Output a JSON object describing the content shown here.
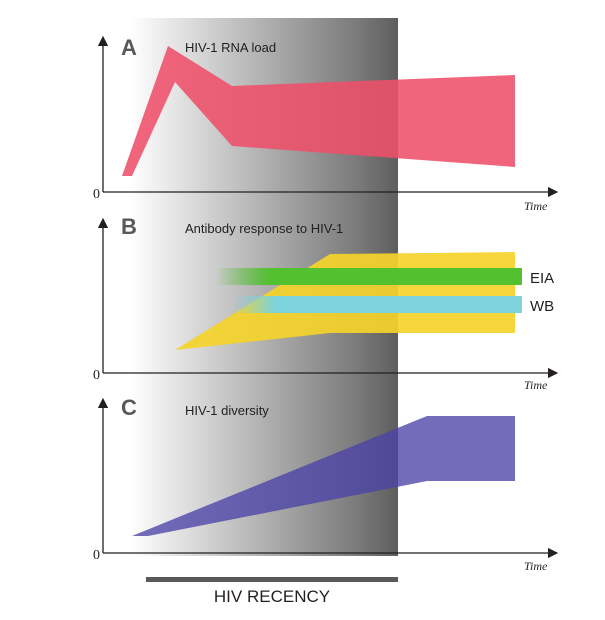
{
  "panels": [
    {
      "letter": "A",
      "title": "HIV-1 RNA load",
      "zero": "0",
      "xlabel": "Time"
    },
    {
      "letter": "B",
      "title": "Antibody response to HIV-1",
      "zero": "0",
      "xlabel": "Time"
    },
    {
      "letter": "C",
      "title": "HIV-1 diversity",
      "zero": "0",
      "xlabel": "Time"
    }
  ],
  "assays": [
    {
      "label": "EIA",
      "color": "#52c02f"
    },
    {
      "label": "WB",
      "color": "#7dd3dc"
    }
  ],
  "recency": {
    "label": "HIV RECENCY"
  },
  "colors": {
    "rna_load": "#ee4f6a",
    "antibody": "#f4d22a",
    "diversity": "#4a43a8",
    "recency_bar": "#58595b",
    "axis": "#231f20"
  }
}
